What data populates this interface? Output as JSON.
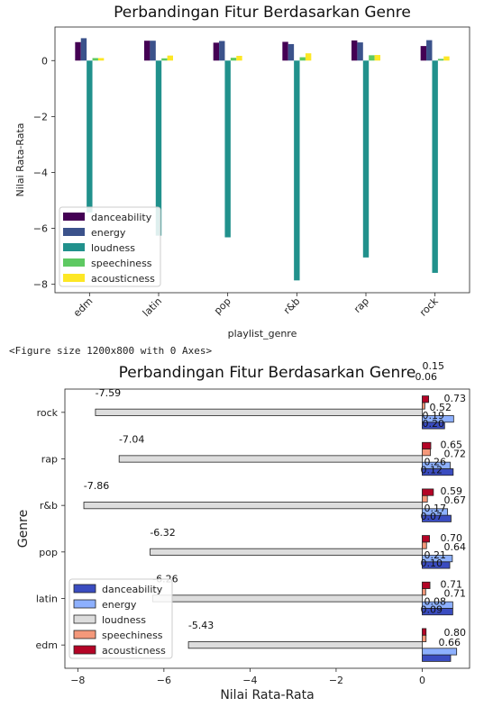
{
  "chart_data": [
    {
      "type": "bar",
      "orientation": "vertical",
      "title": "Perbandingan Fitur Berdasarkan Genre",
      "xlabel": "playlist_genre",
      "ylabel": "Nilai Rata-Rata",
      "ylim": [
        -8.3,
        1.2
      ],
      "yticks": [
        0,
        -2,
        -4,
        -6,
        -8
      ],
      "ytick_labels": [
        "0",
        "−2",
        "−4",
        "−6",
        "−8"
      ],
      "grid": false,
      "legend_position": "lower-left",
      "categories": [
        "edm",
        "latin",
        "pop",
        "r&b",
        "rap",
        "rock"
      ],
      "series": [
        {
          "name": "danceability",
          "color": "#440154",
          "values": [
            0.66,
            0.71,
            0.64,
            0.67,
            0.72,
            0.52
          ]
        },
        {
          "name": "energy",
          "color": "#3b528b",
          "values": [
            0.8,
            0.71,
            0.7,
            0.59,
            0.65,
            0.73
          ]
        },
        {
          "name": "loudness",
          "color": "#21918c",
          "values": [
            -5.43,
            -6.26,
            -6.32,
            -7.86,
            -7.04,
            -7.59
          ]
        },
        {
          "name": "speechiness",
          "color": "#5ec962",
          "values": [
            0.09,
            0.08,
            0.1,
            0.12,
            0.19,
            0.06
          ]
        },
        {
          "name": "acousticness",
          "color": "#fde725",
          "values": [
            0.09,
            0.18,
            0.17,
            0.26,
            0.2,
            0.15
          ]
        }
      ]
    },
    {
      "type": "bar",
      "orientation": "horizontal",
      "title": "Perbandingan Fitur Berdasarkan Genre",
      "xlabel": "Nilai Rata-Rata",
      "ylabel": "Genre",
      "xlim": [
        -8.3,
        1.1
      ],
      "xticks": [
        -8,
        -6,
        -4,
        -2,
        0
      ],
      "xtick_labels": [
        "−8",
        "−6",
        "−4",
        "−2",
        "0"
      ],
      "grid": false,
      "legend_position": "lower-left",
      "categories": [
        "edm",
        "latin",
        "pop",
        "r&b",
        "rap",
        "rock"
      ],
      "series": [
        {
          "name": "danceability",
          "color": "#3a4cc0",
          "values": [
            0.66,
            0.71,
            0.64,
            0.67,
            0.72,
            0.52
          ]
        },
        {
          "name": "energy",
          "color": "#8db0fe",
          "values": [
            0.8,
            0.71,
            0.7,
            0.59,
            0.65,
            0.73
          ]
        },
        {
          "name": "loudness",
          "color": "#dddddd",
          "values": [
            -5.43,
            -6.26,
            -6.32,
            -7.86,
            -7.04,
            -7.59
          ]
        },
        {
          "name": "speechiness",
          "color": "#f4987a",
          "values": [
            0.09,
            0.08,
            0.1,
            0.12,
            0.19,
            0.06
          ]
        },
        {
          "name": "acousticness",
          "color": "#b40426",
          "values": [
            0.09,
            0.18,
            0.17,
            0.26,
            0.2,
            0.15
          ]
        }
      ],
      "data_labels": [
        {
          "category": "rock",
          "texts": [
            "0.15",
            "0.06",
            "0.73",
            "0.52",
            "0.19",
            "0.20"
          ]
        },
        {
          "category": "rap",
          "texts": [
            "0.65",
            "0.72",
            "0.26",
            "0.12"
          ]
        },
        {
          "category": "r&b",
          "texts": [
            "0.59",
            "0.67",
            "0.17",
            "0.07"
          ]
        },
        {
          "category": "pop",
          "texts": [
            "0.70",
            "0.64",
            "0.21",
            "0.10"
          ]
        },
        {
          "category": "latin",
          "texts": [
            "0.71",
            "0.71",
            "0.08",
            "0.09"
          ]
        },
        {
          "category": "edm",
          "texts": [
            "0.80",
            "0.66"
          ]
        }
      ]
    }
  ],
  "figure_caption": "<Figure size 1200x800 with 0 Axes>"
}
